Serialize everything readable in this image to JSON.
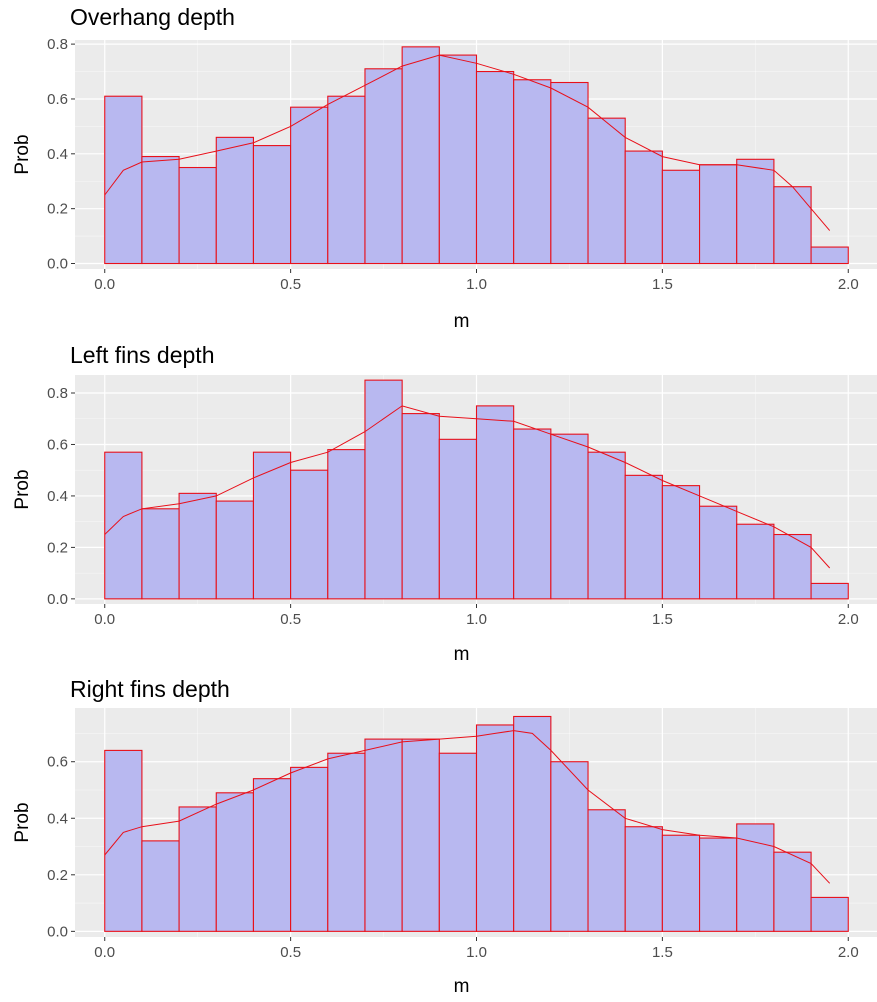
{
  "colors": {
    "panel_bg": "#ebebeb",
    "grid_major": "#ffffff",
    "bar_fill": "#b8b8f0",
    "bar_stroke": "#e8101a",
    "density_line": "#e8101a",
    "tick_text": "#4d4d4d",
    "tick_mark": "#333333"
  },
  "chart_data": [
    {
      "type": "bar",
      "title": "Overhang depth",
      "xlabel": "m",
      "ylabel": "Prob",
      "xlim": [
        -0.08,
        2.08
      ],
      "ylim": [
        -0.02,
        0.815
      ],
      "x_ticks": [
        0.0,
        0.5,
        1.0,
        1.5,
        2.0
      ],
      "x_tick_labels": [
        "0.0",
        "0.5",
        "1.0",
        "1.5",
        "2.0"
      ],
      "y_ticks": [
        0.0,
        0.2,
        0.4,
        0.6,
        0.8
      ],
      "y_tick_labels": [
        "0.0",
        "0.2",
        "0.4",
        "0.6",
        "0.8"
      ],
      "bin_width": 0.1,
      "bin_starts": [
        0.0,
        0.1,
        0.2,
        0.3,
        0.4,
        0.5,
        0.6,
        0.7,
        0.8,
        0.9,
        1.0,
        1.1,
        1.2,
        1.3,
        1.4,
        1.5,
        1.6,
        1.7,
        1.8,
        1.9
      ],
      "values": [
        0.61,
        0.39,
        0.35,
        0.46,
        0.43,
        0.57,
        0.61,
        0.71,
        0.79,
        0.76,
        0.7,
        0.67,
        0.66,
        0.53,
        0.41,
        0.34,
        0.36,
        0.38,
        0.28,
        0.06
      ],
      "density": {
        "x": [
          0.0,
          0.05,
          0.1,
          0.2,
          0.3,
          0.4,
          0.5,
          0.6,
          0.7,
          0.8,
          0.9,
          1.0,
          1.1,
          1.2,
          1.3,
          1.4,
          1.5,
          1.6,
          1.7,
          1.8,
          1.85,
          1.9,
          1.95
        ],
        "y": [
          0.25,
          0.34,
          0.37,
          0.38,
          0.41,
          0.44,
          0.5,
          0.58,
          0.65,
          0.72,
          0.76,
          0.73,
          0.69,
          0.64,
          0.57,
          0.46,
          0.39,
          0.36,
          0.36,
          0.34,
          0.28,
          0.2,
          0.12
        ]
      }
    },
    {
      "type": "bar",
      "title": "Left fins depth",
      "xlabel": "m",
      "ylabel": "Prob",
      "xlim": [
        -0.08,
        2.08
      ],
      "ylim": [
        -0.02,
        0.87
      ],
      "x_ticks": [
        0.0,
        0.5,
        1.0,
        1.5,
        2.0
      ],
      "x_tick_labels": [
        "0.0",
        "0.5",
        "1.0",
        "1.5",
        "2.0"
      ],
      "y_ticks": [
        0.0,
        0.2,
        0.4,
        0.6,
        0.8
      ],
      "y_tick_labels": [
        "0.0",
        "0.2",
        "0.4",
        "0.6",
        "0.8"
      ],
      "bin_width": 0.1,
      "bin_starts": [
        0.0,
        0.1,
        0.2,
        0.3,
        0.4,
        0.5,
        0.6,
        0.7,
        0.8,
        0.9,
        1.0,
        1.1,
        1.2,
        1.3,
        1.4,
        1.5,
        1.6,
        1.7,
        1.8,
        1.9
      ],
      "values": [
        0.57,
        0.35,
        0.41,
        0.38,
        0.57,
        0.5,
        0.58,
        0.85,
        0.72,
        0.62,
        0.75,
        0.66,
        0.64,
        0.57,
        0.48,
        0.44,
        0.36,
        0.29,
        0.25,
        0.06
      ],
      "density": {
        "x": [
          0.0,
          0.05,
          0.1,
          0.2,
          0.3,
          0.4,
          0.5,
          0.6,
          0.7,
          0.8,
          0.9,
          1.0,
          1.1,
          1.2,
          1.3,
          1.4,
          1.5,
          1.6,
          1.7,
          1.8,
          1.9,
          1.95
        ],
        "y": [
          0.25,
          0.32,
          0.35,
          0.37,
          0.4,
          0.47,
          0.53,
          0.57,
          0.65,
          0.75,
          0.71,
          0.7,
          0.69,
          0.64,
          0.59,
          0.53,
          0.46,
          0.4,
          0.34,
          0.28,
          0.2,
          0.12
        ]
      }
    },
    {
      "type": "bar",
      "title": "Right fins depth",
      "xlabel": "m",
      "ylabel": "Prob",
      "xlim": [
        -0.08,
        2.08
      ],
      "ylim": [
        -0.02,
        0.79
      ],
      "x_ticks": [
        0.0,
        0.5,
        1.0,
        1.5,
        2.0
      ],
      "x_tick_labels": [
        "0.0",
        "0.5",
        "1.0",
        "1.5",
        "2.0"
      ],
      "y_ticks": [
        0.0,
        0.2,
        0.4,
        0.6
      ],
      "y_tick_labels": [
        "0.0",
        "0.2",
        "0.4",
        "0.6"
      ],
      "bin_width": 0.1,
      "bin_starts": [
        0.0,
        0.1,
        0.2,
        0.3,
        0.4,
        0.5,
        0.6,
        0.7,
        0.8,
        0.9,
        1.0,
        1.1,
        1.2,
        1.3,
        1.4,
        1.5,
        1.6,
        1.7,
        1.8,
        1.9
      ],
      "values": [
        0.64,
        0.32,
        0.44,
        0.49,
        0.54,
        0.58,
        0.63,
        0.68,
        0.68,
        0.63,
        0.73,
        0.76,
        0.6,
        0.43,
        0.37,
        0.34,
        0.33,
        0.38,
        0.28,
        0.12
      ],
      "density": {
        "x": [
          0.0,
          0.05,
          0.1,
          0.2,
          0.3,
          0.4,
          0.5,
          0.6,
          0.7,
          0.8,
          0.9,
          1.0,
          1.05,
          1.1,
          1.15,
          1.2,
          1.3,
          1.4,
          1.5,
          1.6,
          1.7,
          1.8,
          1.9,
          1.95
        ],
        "y": [
          0.27,
          0.35,
          0.37,
          0.39,
          0.45,
          0.5,
          0.56,
          0.61,
          0.64,
          0.67,
          0.68,
          0.69,
          0.7,
          0.71,
          0.7,
          0.64,
          0.5,
          0.4,
          0.36,
          0.34,
          0.33,
          0.3,
          0.24,
          0.17
        ]
      }
    }
  ]
}
